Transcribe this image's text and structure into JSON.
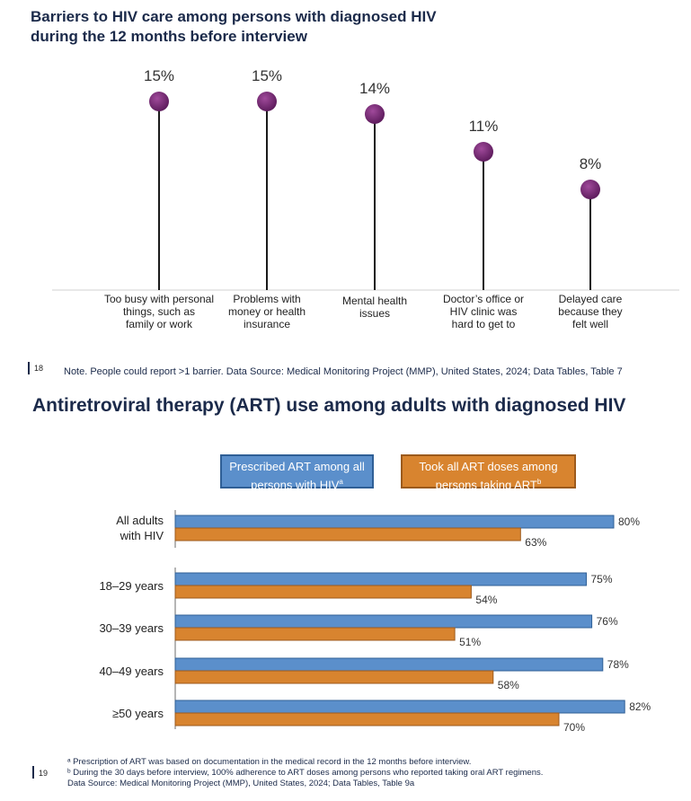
{
  "section1": {
    "title_line1": "Barriers to HIV care among persons with diagnosed HIV",
    "title_line2": "during the 12 months before interview",
    "page_number": "18",
    "note": "Note. People could report >1 barrier. Data Source: Medical Monitoring Project (MMP), United States, 2024; Data Tables, Table 7"
  },
  "section2": {
    "title": "Antiretroviral therapy (ART) use among adults with diagnosed HIV",
    "page_number": "19",
    "legend": {
      "blue_line1": "Prescribed ART among all",
      "blue_line2": "persons with HIV",
      "blue_sup": "a",
      "orange_line1": "Took all ART doses among",
      "orange_line2": "persons taking ART",
      "orange_sup": "b"
    },
    "footnotes": {
      "a": "ᵃ Prescription of ART was based on documentation in the medical record in the 12 months before interview.",
      "b": "ᵇ During the 30 days before interview, 100% adherence to ART doses among persons who reported taking oral ART regimens.",
      "source": "Data Source: Medical Monitoring Project (MMP), United States, 2024; Data Tables, Table 9a"
    }
  },
  "colors": {
    "lollipop": "#7b2a78",
    "blue": "#5b8fcb",
    "orange": "#d8842f",
    "navy": "#1b2a4a"
  },
  "chart_data": [
    {
      "type": "lollipop",
      "title": "Barriers to HIV care among persons with diagnosed HIV during the 12 months before interview",
      "categories": [
        [
          "Too busy with personal",
          "things, such as",
          "family or work"
        ],
        [
          "Problems with",
          "money or health",
          "insurance"
        ],
        [
          "Mental health",
          "issues"
        ],
        [
          "Doctor’s office or",
          "HIV clinic was",
          "hard to get to"
        ],
        [
          "Delayed care",
          "because they",
          "felt well"
        ]
      ],
      "values": [
        15,
        15,
        14,
        11,
        8
      ],
      "labels": [
        "15%",
        "15%",
        "14%",
        "11%",
        "8%"
      ],
      "ylim": [
        0,
        16
      ],
      "grid": false
    },
    {
      "type": "bar",
      "orientation": "horizontal",
      "title": "Antiretroviral therapy (ART) use among adults with diagnosed HIV",
      "categories": [
        [
          "All adults",
          "with HIV"
        ],
        [
          "18–29 years"
        ],
        [
          "30–39 years"
        ],
        [
          "40–49 years"
        ],
        [
          "≥50 years"
        ]
      ],
      "series": [
        {
          "name": "Prescribed ART among all persons with HIV",
          "values": [
            80,
            75,
            76,
            78,
            82
          ],
          "labels": [
            "80%",
            "75%",
            "76%",
            "78%",
            "82%"
          ]
        },
        {
          "name": "Took all ART doses among persons taking ART",
          "values": [
            63,
            54,
            51,
            58,
            70
          ],
          "labels": [
            "63%",
            "54%",
            "51%",
            "58%",
            "70%"
          ]
        }
      ],
      "xlim": [
        0,
        100
      ],
      "legend": "top",
      "grid": false
    }
  ]
}
